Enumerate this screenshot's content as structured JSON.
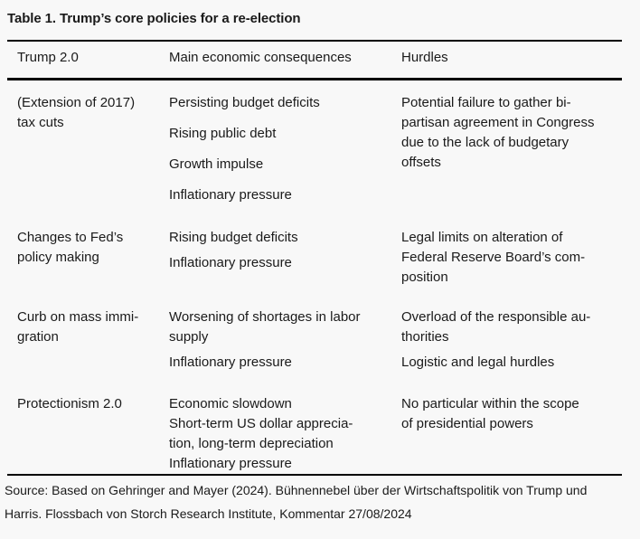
{
  "page": {
    "title": "Table 1. Trump’s core policies for a re-election",
    "background_color": "#f8f8f8",
    "text_color": "#1a1a1a",
    "rule_color": "#000000"
  },
  "table": {
    "headers": [
      "Trump 2.0",
      "Main economic consequences",
      "Hurdles"
    ],
    "rows": [
      {
        "policy": [
          [
            "(Extension of 2017)",
            "tax cuts"
          ]
        ],
        "consequences": [
          [
            "Persisting budget deficits"
          ],
          [
            "Rising public debt"
          ],
          [
            "Growth impulse"
          ],
          [
            "Inflationary pressure"
          ]
        ],
        "hurdles": [
          [
            "Potential failure to gather bi-",
            "partisan agreement in Congress",
            "due to the lack of budgetary",
            "offsets"
          ]
        ]
      },
      {
        "policy": [
          [
            "Changes to Fed’s",
            "policy making"
          ]
        ],
        "consequences": [
          [
            "Rising budget deficits"
          ],
          [
            "Inflationary pressure"
          ]
        ],
        "hurdles": [
          [
            "Legal limits on alteration of",
            "Federal Reserve Board’s com-",
            "position"
          ]
        ]
      },
      {
        "policy": [
          [
            "Curb on mass immi-",
            "gration"
          ]
        ],
        "consequences": [
          [
            "Worsening of shortages in labor",
            "supply"
          ],
          [
            "Inflationary pressure"
          ]
        ],
        "hurdles": [
          [
            "Overload of the responsible au-",
            "thorities"
          ],
          [
            "Logistic and legal hurdles"
          ]
        ]
      },
      {
        "policy": [
          [
            "Protectionism 2.0"
          ]
        ],
        "consequences": [
          [
            "Economic slowdown"
          ],
          [
            "Short-term US dollar apprecia-",
            "tion, long-term depreciation"
          ],
          [
            "Inflationary pressure"
          ]
        ],
        "hurdles": [
          [
            "No particular within the scope",
            "of presidential powers"
          ]
        ]
      }
    ]
  },
  "source": {
    "lines": [
      "Source: Based on Gehringer and Mayer (2024). Bühnennebel über der Wirtschaftspolitik von Trump und",
      "Harris. Flossbach von Storch Research Institute, Kommentar 27/08/2024"
    ]
  }
}
